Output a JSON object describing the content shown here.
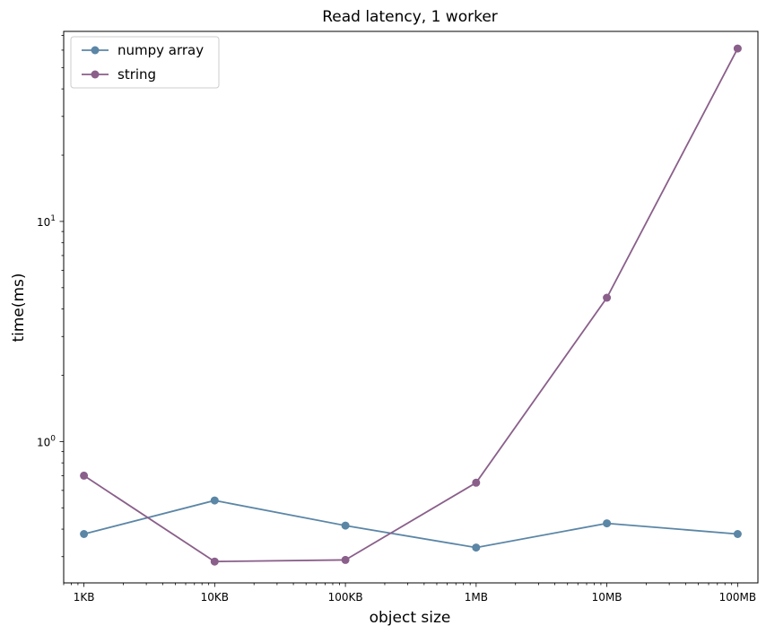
{
  "chart_data": {
    "type": "line",
    "title": "Read latency, 1 worker",
    "xlabel": "object size",
    "ylabel": "time(ms)",
    "x_scale": "log",
    "y_scale": "log",
    "x_ticks": [
      {
        "value": 1000,
        "label": "1KB"
      },
      {
        "value": 10000,
        "label": "10KB"
      },
      {
        "value": 100000,
        "label": "100KB"
      },
      {
        "value": 1000000,
        "label": "1MB"
      },
      {
        "value": 10000000,
        "label": "10MB"
      },
      {
        "value": 100000000,
        "label": "100MB"
      }
    ],
    "y_ticks": [
      {
        "value": 1,
        "label_base": "10",
        "label_exp": "0"
      },
      {
        "value": 10,
        "label_base": "10",
        "label_exp": "1"
      }
    ],
    "xlim": [
      700,
      143000000
    ],
    "ylim": [
      0.228,
      73
    ],
    "grid": false,
    "legend_position": "top-left",
    "series": [
      {
        "name": "numpy array",
        "color": "#5b86a6",
        "x": [
          1000,
          10000,
          100000,
          1000000,
          10000000,
          100000000
        ],
        "y": [
          0.38,
          0.54,
          0.415,
          0.33,
          0.425,
          0.38
        ]
      },
      {
        "name": "string",
        "color": "#8a5f8a",
        "x": [
          1000,
          10000,
          100000,
          1000000,
          10000000,
          100000000
        ],
        "y": [
          0.7,
          0.285,
          0.29,
          0.65,
          4.5,
          61
        ]
      }
    ]
  }
}
